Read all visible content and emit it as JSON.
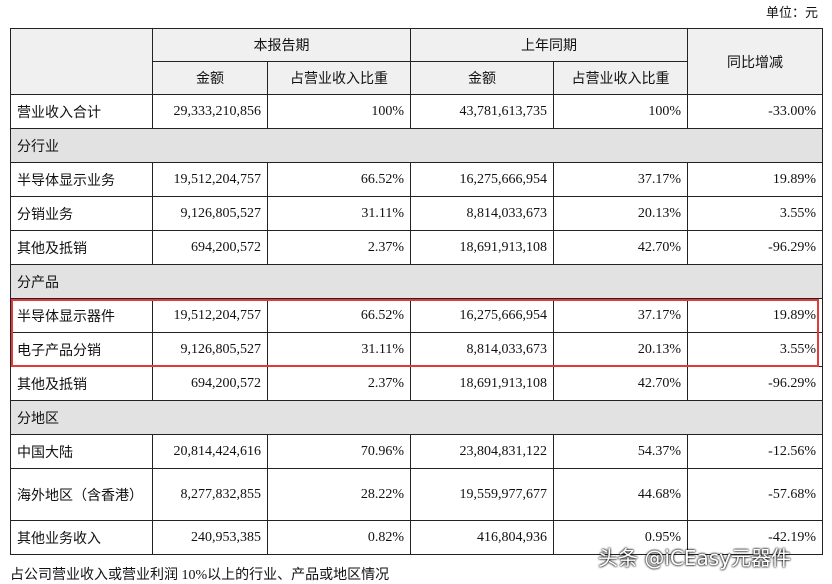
{
  "unit": "单位：元",
  "table": {
    "header": {
      "row_label": "",
      "current": "本报告期",
      "previous": "上年同期",
      "change": "同比增减",
      "sub": [
        "金额",
        "占营业收入比重",
        "金额",
        "占营业收入比重"
      ]
    },
    "rows": [
      [
        "营业收入合计",
        "29,333,210,856",
        "100%",
        "43,781,613,735",
        "100%",
        "-33.00%"
      ],
      [
        "分行业"
      ],
      [
        "半导体显示业务",
        "19,512,204,757",
        "66.52%",
        "16,275,666,954",
        "37.17%",
        "19.89%"
      ],
      [
        "分销业务",
        "9,126,805,527",
        "31.11%",
        "8,814,033,673",
        "20.13%",
        "3.55%"
      ],
      [
        "其他及抵销",
        "694,200,572",
        "2.37%",
        "18,691,913,108",
        "42.70%",
        "-96.29%"
      ],
      [
        "分产品"
      ],
      [
        "半导体显示器件",
        "19,512,204,757",
        "66.52%",
        "16,275,666,954",
        "37.17%",
        "19.89%"
      ],
      [
        "电子产品分销",
        "9,126,805,527",
        "31.11%",
        "8,814,033,673",
        "20.13%",
        "3.55%"
      ],
      [
        "其他及抵销",
        "694,200,572",
        "2.37%",
        "18,691,913,108",
        "42.70%",
        "-96.29%"
      ],
      [
        "分地区"
      ],
      [
        "中国大陆",
        "20,814,424,616",
        "70.96%",
        "23,804,831,122",
        "54.37%",
        "-12.56%"
      ],
      [
        "海外地区（含香港）",
        "8,277,832,855",
        "28.22%",
        "19,559,977,677",
        "44.68%",
        "-57.68%"
      ],
      [
        "其他业务收入",
        "240,953,385",
        "0.82%",
        "416,804,936",
        "0.95%",
        "-42.19%"
      ]
    ]
  },
  "footer": "占公司营业收入或营业利润 10%以上的行业、产品或地区情况",
  "watermark": "头条 @iCEasy元器件"
}
